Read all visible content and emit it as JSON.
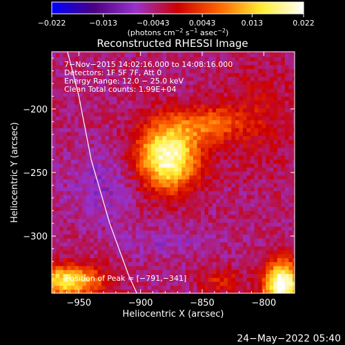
{
  "chart_data": {
    "type": "heatmap",
    "title": "Reconstructed RHESSI Image",
    "xlabel": "Heliocentric X (arcsec)",
    "ylabel": "Heliocentric Y (arcsec)",
    "xlim": [
      -972,
      -775
    ],
    "ylim": [
      -345,
      -155
    ],
    "x_ticks": [
      -950,
      -900,
      -850,
      -800
    ],
    "x_tick_labels": [
      "−950",
      "−900",
      "−850",
      "−800"
    ],
    "y_ticks": [
      -200,
      -250,
      -300
    ],
    "y_tick_labels": [
      "−200",
      "−250",
      "−300"
    ],
    "colorbar": {
      "range": [
        -0.022,
        0.022
      ],
      "ticks": [
        -0.022,
        -0.013,
        -0.0043,
        0.0043,
        0.013,
        0.022
      ],
      "tick_labels": [
        "−0.022",
        "−0.013",
        "−0.0043",
        "0.0043",
        "0.013",
        "0.022"
      ],
      "label_main": "(photons cm",
      "label_exp1": "−2",
      "label_mid1": " s",
      "label_exp2": "−1",
      "label_mid2": " asec",
      "label_exp3": "−2",
      "label_end": ")",
      "colors": [
        "#0000ff",
        "#4b0082",
        "#9932cc",
        "#cc0000",
        "#ff6600",
        "#ffee33",
        "#ffffff"
      ]
    },
    "annotations": [
      " 7−Nov−2015 14:02:16.000 to 14:08:16.000",
      "Detectors: 1F 5F 7F, Att 0",
      "Energy Range: 12.0 − 25.0 keV",
      "Clean     Total counts: 1.99E+04"
    ],
    "peak_label": "Position of Peak = [−791,−341]",
    "limb_curve": [
      [
        -960,
        -152
      ],
      [
        -950,
        -190
      ],
      [
        -940,
        -240
      ],
      [
        -925,
        -290
      ],
      [
        -910,
        -330
      ],
      [
        -903,
        -345
      ]
    ]
  },
  "footer": {
    "timestamp": "24−May−2022 05:40"
  }
}
